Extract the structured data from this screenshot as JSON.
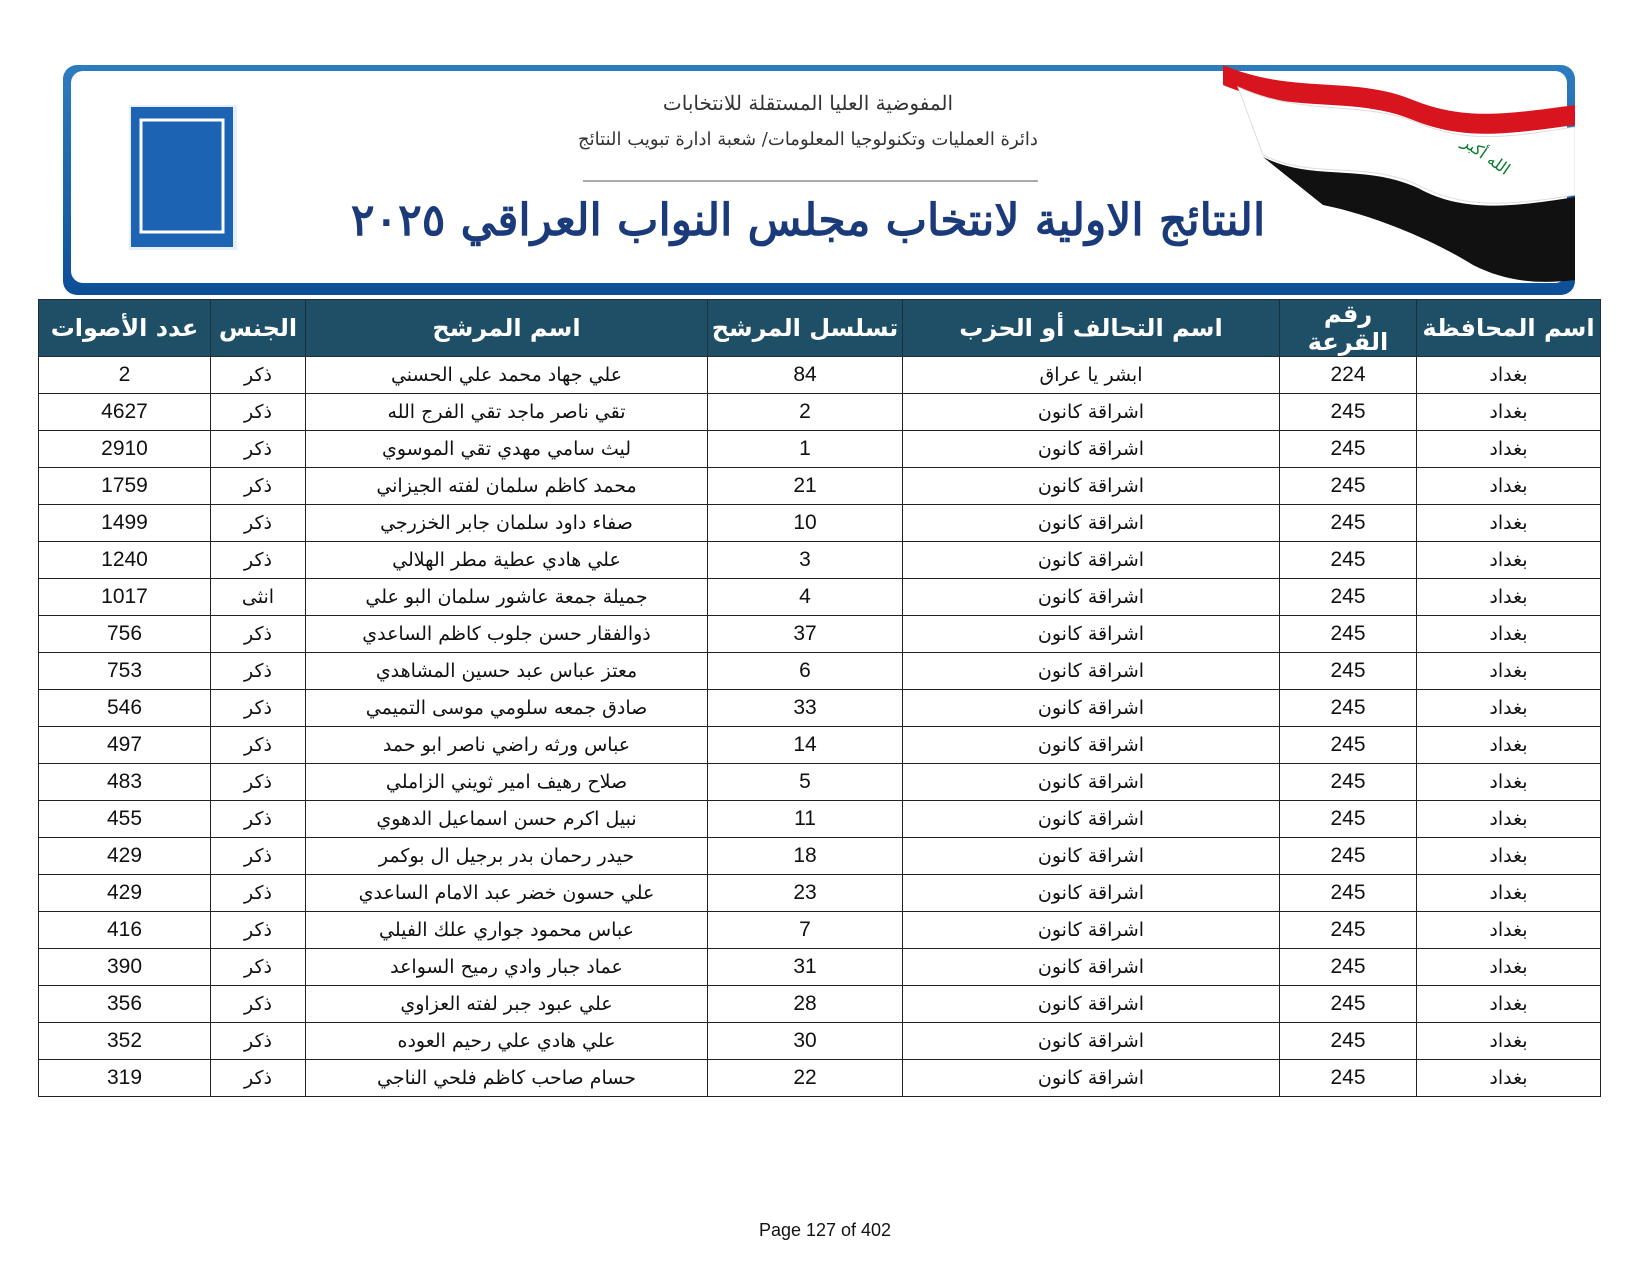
{
  "header": {
    "commission": "المفوضية العليا المستقلة للانتخابات",
    "department": "دائرة العمليات وتكنولوجيا المعلومات/ شعبة ادارة تبويب النتائج",
    "title": "النتائج الاولية لانتخاب مجلس النواب العراقي ٢٠٢٥",
    "flag_text": "الله أكبر"
  },
  "table": {
    "columns": [
      "اسم المحافظة",
      "رقم القرعة",
      "اسم التحالف أو الحزب",
      "تسلسل المرشح",
      "اسم المرشح",
      "الجنس",
      "عدد الأصوات"
    ],
    "rows": [
      [
        "بغداد",
        224,
        "ابشر يا عراق",
        84,
        "علي جهاد محمد علي الحسني",
        "ذكر",
        2
      ],
      [
        "بغداد",
        245,
        "اشراقة كانون",
        2,
        "تقي ناصر ماجد تقي الفرج الله",
        "ذكر",
        4627
      ],
      [
        "بغداد",
        245,
        "اشراقة كانون",
        1,
        "ليث سامي مهدي تقي الموسوي",
        "ذكر",
        2910
      ],
      [
        "بغداد",
        245,
        "اشراقة كانون",
        21,
        "محمد كاظم سلمان لفته الجيزاني",
        "ذكر",
        1759
      ],
      [
        "بغداد",
        245,
        "اشراقة كانون",
        10,
        "صفاء داود سلمان جابر الخزرجي",
        "ذكر",
        1499
      ],
      [
        "بغداد",
        245,
        "اشراقة كانون",
        3,
        "علي هادي عطية مطر الهلالي",
        "ذكر",
        1240
      ],
      [
        "بغداد",
        245,
        "اشراقة كانون",
        4,
        "جميلة جمعة عاشور سلمان البو علي",
        "انثى",
        1017
      ],
      [
        "بغداد",
        245,
        "اشراقة كانون",
        37,
        "ذوالفقار حسن جلوب كاظم الساعدي",
        "ذكر",
        756
      ],
      [
        "بغداد",
        245,
        "اشراقة كانون",
        6,
        "معتز عباس عبد حسين المشاهدي",
        "ذكر",
        753
      ],
      [
        "بغداد",
        245,
        "اشراقة كانون",
        33,
        "صادق جمعه سلومي موسى التميمي",
        "ذكر",
        546
      ],
      [
        "بغداد",
        245,
        "اشراقة كانون",
        14,
        "عباس ورثه راضي ناصر ابو حمد",
        "ذكر",
        497
      ],
      [
        "بغداد",
        245,
        "اشراقة كانون",
        5,
        "صلاح رهيف امير ثويني الزاملي",
        "ذكر",
        483
      ],
      [
        "بغداد",
        245,
        "اشراقة كانون",
        11,
        "نبيل اكرم حسن اسماعيل الدهوي",
        "ذكر",
        455
      ],
      [
        "بغداد",
        245,
        "اشراقة كانون",
        18,
        "حيدر رحمان بدر برجيل ال بوكمر",
        "ذكر",
        429
      ],
      [
        "بغداد",
        245,
        "اشراقة كانون",
        23,
        "علي حسون خضر عبد الامام الساعدي",
        "ذكر",
        429
      ],
      [
        "بغداد",
        245,
        "اشراقة كانون",
        7,
        "عباس محمود جواري علك الفيلي",
        "ذكر",
        416
      ],
      [
        "بغداد",
        245,
        "اشراقة كانون",
        31,
        "عماد جبار وادي رميح السواعد",
        "ذكر",
        390
      ],
      [
        "بغداد",
        245,
        "اشراقة كانون",
        28,
        "علي عبود جبر لفته العزاوي",
        "ذكر",
        356
      ],
      [
        "بغداد",
        245,
        "اشراقة كانون",
        30,
        "علي هادي علي رحيم العوده",
        "ذكر",
        352
      ],
      [
        "بغداد",
        245,
        "اشراقة كانون",
        22,
        "حسام صاحب كاظم فلحي الناجي",
        "ذكر",
        319
      ]
    ]
  },
  "footer": "Page 127 of 402"
}
